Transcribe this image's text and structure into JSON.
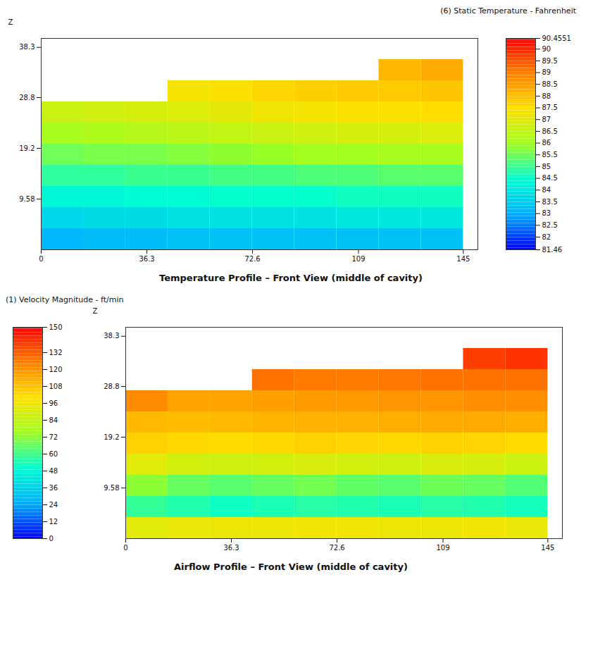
{
  "chart_data": [
    {
      "type": "heatmap",
      "title": "Temperature Profile – Front View (middle of cavity)",
      "ylabel": "Z",
      "xlim": [
        0,
        150
      ],
      "xticks": [
        0,
        36.3,
        72.6,
        109,
        145
      ],
      "ylim": [
        0,
        40
      ],
      "yticks": [
        9.58,
        19.2,
        28.8,
        38.3
      ],
      "legend": "right",
      "cells": {
        "x": [
          0,
          14.5,
          29,
          43.5,
          58,
          72.5,
          87,
          101.5,
          116,
          130.5,
          145
        ],
        "z": [
          0,
          4,
          8,
          12,
          16,
          20,
          24,
          28,
          32,
          36
        ],
        "values": [
          [
            83.1,
            83.2,
            83.2,
            83.3,
            83.3,
            83.3,
            83.3,
            83.3,
            83.3,
            83.3
          ],
          [
            83.7,
            83.8,
            83.8,
            83.9,
            83.9,
            83.9,
            83.9,
            84.0,
            84.0,
            84.0
          ],
          [
            84.3,
            84.3,
            84.4,
            84.4,
            84.5,
            84.5,
            84.5,
            84.6,
            84.6,
            84.6
          ],
          [
            84.9,
            84.9,
            85.0,
            85.0,
            85.1,
            85.1,
            85.2,
            85.2,
            85.3,
            85.3
          ],
          [
            85.5,
            85.6,
            85.6,
            85.7,
            85.8,
            85.9,
            86.0,
            86.0,
            86.1,
            86.1
          ],
          [
            86.1,
            86.2,
            86.3,
            86.4,
            86.5,
            86.6,
            86.7,
            86.8,
            86.8,
            86.9
          ],
          [
            86.6,
            86.7,
            86.8,
            86.9,
            87.0,
            87.2,
            87.3,
            87.4,
            87.4,
            87.5
          ],
          [
            null,
            null,
            null,
            87.3,
            87.4,
            87.6,
            87.7,
            87.8,
            87.8,
            87.9
          ],
          [
            null,
            null,
            null,
            null,
            null,
            null,
            null,
            null,
            88.1,
            88.3
          ]
        ]
      },
      "colorbar": {
        "title": "(6) Static Temperature - Fahrenheit",
        "range": [
          81.46,
          90.4551
        ],
        "ticks": [
          81.46,
          82,
          82.5,
          83,
          83.5,
          84,
          84.5,
          85,
          85.5,
          86,
          86.5,
          87,
          87.5,
          88,
          88.5,
          89,
          89.5,
          90,
          90.4551
        ]
      }
    },
    {
      "type": "heatmap",
      "title": "Airflow Profile – Front View (middle of cavity)",
      "ylabel": "Z",
      "xlim": [
        0,
        150
      ],
      "xticks": [
        0,
        36.3,
        72.6,
        109,
        145
      ],
      "ylim": [
        0,
        40
      ],
      "yticks": [
        9.58,
        19.2,
        28.8,
        38.3
      ],
      "legend": "left",
      "cells": {
        "x": [
          0,
          14.5,
          29,
          43.5,
          58,
          72.5,
          87,
          101.5,
          116,
          130.5,
          145
        ],
        "z": [
          0,
          4,
          8,
          12,
          16,
          20,
          24,
          28,
          32,
          36
        ],
        "values": [
          [
            92,
            94,
            95,
            95,
            96,
            96,
            95,
            95,
            96,
            94
          ],
          [
            58,
            55,
            52,
            54,
            56,
            55,
            54,
            56,
            55,
            53
          ],
          [
            72,
            66,
            64,
            66,
            68,
            65,
            64,
            67,
            66,
            63
          ],
          [
            92,
            88,
            87,
            88,
            90,
            88,
            87,
            90,
            89,
            86
          ],
          [
            104,
            102,
            101,
            102,
            104,
            103,
            102,
            104,
            103,
            101
          ],
          [
            110,
            109,
            110,
            111,
            112,
            112,
            113,
            114,
            114,
            113
          ],
          [
            122,
            116,
            116,
            117,
            118,
            119,
            120,
            120,
            121,
            121
          ],
          [
            null,
            null,
            null,
            128,
            126,
            126,
            127,
            128,
            128,
            128
          ],
          [
            null,
            null,
            null,
            null,
            null,
            null,
            null,
            null,
            138,
            140
          ]
        ]
      },
      "colorbar": {
        "title": "(1) Velocity Magnitude - ft/min",
        "range": [
          0,
          150
        ],
        "ticks": [
          0,
          12,
          24,
          36,
          48,
          60,
          72,
          84,
          96,
          108,
          120,
          132,
          150
        ]
      }
    }
  ]
}
